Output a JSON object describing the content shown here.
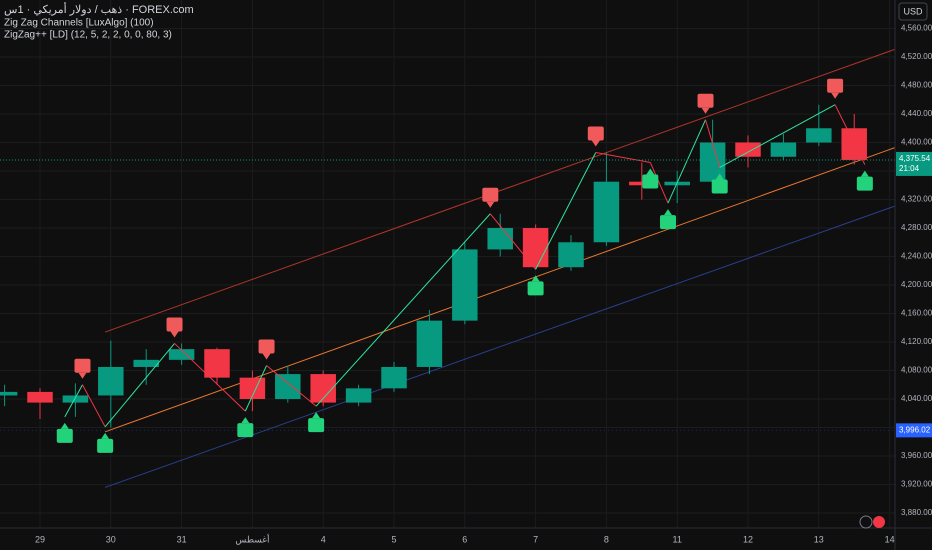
{
  "chart_data": {
    "type": "candlestick",
    "title": "ذهب / دولار أمريكي · 1س · FOREX.com",
    "indicators": [
      "Zig Zag Channels [LuxAlgo] (100)",
      "ZigZag++ [LD] (12, 5, 2, 2, 0, 0, 80, 3)"
    ],
    "currency": "USD",
    "x": [
      -0.5,
      0,
      0.5,
      1,
      1.5,
      2,
      2.5,
      3,
      3.5,
      4,
      4.5,
      5,
      5.5,
      6,
      6.5,
      7,
      7.5,
      8,
      8.5,
      9,
      9.5,
      10,
      10.5,
      11,
      11.5
    ],
    "open": [
      4045,
      4050,
      4035,
      4045,
      4085,
      4095,
      4110,
      4070,
      4040,
      4075,
      4035,
      4055,
      4085,
      4150,
      4250,
      4280,
      4225,
      4260,
      4345,
      4340,
      4345,
      4400,
      4380,
      4400,
      4420
    ],
    "high": [
      4060,
      4055,
      4062,
      4122,
      4110,
      4118,
      4112,
      4080,
      4087,
      4080,
      4060,
      4092,
      4165,
      4260,
      4300,
      4285,
      4270,
      4386,
      4372,
      4360,
      4432,
      4410,
      4412,
      4453,
      4440
    ],
    "low": [
      4030,
      4012,
      4015,
      4000,
      4060,
      4088,
      4060,
      4023,
      4035,
      4030,
      4030,
      4050,
      4075,
      4145,
      4240,
      4222,
      4220,
      4255,
      4320,
      4315,
      4340,
      4365,
      4375,
      4395,
      4369
    ],
    "close": [
      4050,
      4035,
      4045,
      4085,
      4095,
      4110,
      4070,
      4040,
      4075,
      4035,
      4055,
      4085,
      4150,
      4250,
      4280,
      4225,
      4260,
      4345,
      4340,
      4345,
      4400,
      4380,
      4400,
      4420,
      4375.54
    ],
    "up_color": "#089981",
    "down_color": "#f23645",
    "zigzag": {
      "x": [
        0.35,
        0.6,
        0.92,
        1.9,
        2.9,
        3.2,
        3.9,
        6.36,
        7.0,
        7.85,
        8.62,
        8.87,
        9.4,
        9.6,
        11.23,
        11.65
      ],
      "values": [
        4015,
        4060,
        4001,
        4118,
        4023,
        4087,
        4030,
        4300,
        4222,
        4386,
        4372,
        4315,
        4432,
        4365,
        4453,
        4369
      ],
      "up_color": "#2ee59d",
      "down_color": "#f23645"
    },
    "channels": [
      {
        "x": [
          0.92,
          12.08
        ],
        "values": [
          4134,
          4531
        ],
        "color": "#b2342c"
      },
      {
        "x": [
          0.92,
          12.08
        ],
        "values": [
          3994,
          4393
        ],
        "color": "#e8772e"
      },
      {
        "x": [
          0.92,
          12.08
        ],
        "values": [
          3916,
          4311
        ],
        "color": "#2a3f8f"
      }
    ],
    "last_price": {
      "value": 4375.54,
      "label": "4,375.54",
      "time": "21:04",
      "color": "#089981"
    },
    "level": {
      "value": 3996.02,
      "label": "3,996.02",
      "color": "#2962ff"
    },
    "xlim": [
      -0.565,
      12.076
    ],
    "ylim": [
      3859,
      4600
    ],
    "xticks": [
      {
        "value": 0,
        "label": "29"
      },
      {
        "value": 1,
        "label": "30"
      },
      {
        "value": 2,
        "label": "31"
      },
      {
        "value": 3,
        "label": "أغسطس"
      },
      {
        "value": 4,
        "label": "4"
      },
      {
        "value": 5,
        "label": "5"
      },
      {
        "value": 6,
        "label": "6"
      },
      {
        "value": 7,
        "label": "7"
      },
      {
        "value": 8,
        "label": "8"
      },
      {
        "value": 9,
        "label": "11"
      },
      {
        "value": 10,
        "label": "12"
      },
      {
        "value": 11,
        "label": "13"
      },
      {
        "value": 12,
        "label": "14"
      }
    ],
    "yticks": [
      {
        "value": 3880,
        "label": "3,880.00"
      },
      {
        "value": 3920,
        "label": "3,920.00"
      },
      {
        "value": 3960,
        "label": "3,960.00"
      },
      {
        "value": 4000,
        "label": "4,000.00"
      },
      {
        "value": 4040,
        "label": "4,040.00"
      },
      {
        "value": 4080,
        "label": "4,080.00"
      },
      {
        "value": 4120,
        "label": "4,120.00"
      },
      {
        "value": 4160,
        "label": "4,160.00"
      },
      {
        "value": 4200,
        "label": "4,200.00"
      },
      {
        "value": 4240,
        "label": "4,240.00"
      },
      {
        "value": 4280,
        "label": "4,280.00"
      },
      {
        "value": 4320,
        "label": "4,320.00"
      },
      {
        "value": 4360,
        "label": "4,360.00"
      },
      {
        "value": 4400,
        "label": "4,400.00"
      },
      {
        "value": 4440,
        "label": "4,440.00"
      },
      {
        "value": 4480,
        "label": "4,480.00"
      },
      {
        "value": 4520,
        "label": "4,520.00"
      },
      {
        "value": 4560,
        "label": "4,560.00"
      }
    ],
    "grid": true
  }
}
